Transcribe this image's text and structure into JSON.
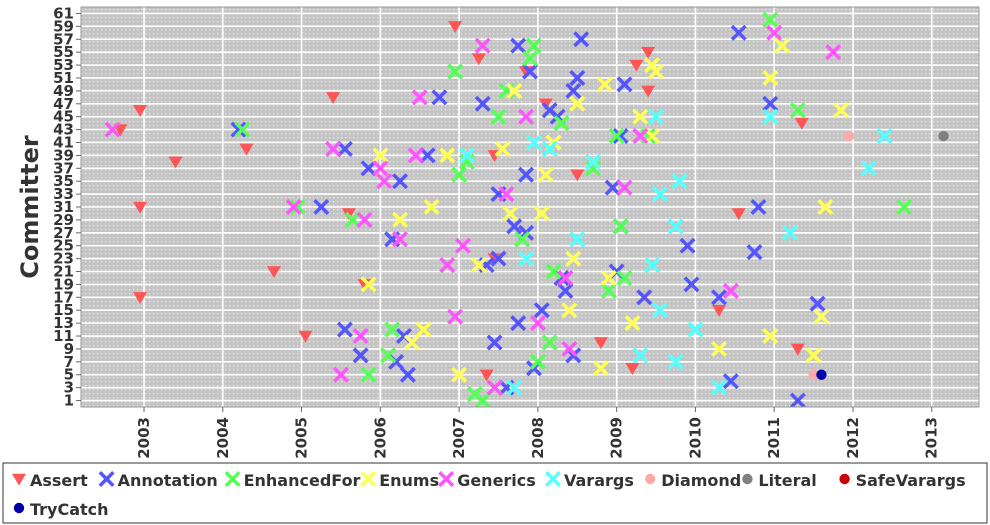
{
  "chart_data": {
    "type": "scatter",
    "title": "",
    "xlabel": "",
    "ylabel": "Committer",
    "xlim": [
      2002.2,
      2013.6
    ],
    "ylim": [
      0,
      62
    ],
    "grid": true,
    "legend_position": "bottom",
    "x_ticks": [
      "2003",
      "2004",
      "2005",
      "2006",
      "2007",
      "2008",
      "2009",
      "2010",
      "2011",
      "2012",
      "2013"
    ],
    "y_ticks": [
      "1",
      "3",
      "5",
      "7",
      "9",
      "11",
      "13",
      "15",
      "17",
      "19",
      "21",
      "23",
      "25",
      "27",
      "29",
      "31",
      "33",
      "35",
      "37",
      "39",
      "41",
      "43",
      "45",
      "47",
      "49",
      "51",
      "53",
      "55",
      "57",
      "59",
      "61"
    ],
    "series": [
      {
        "name": "Assert",
        "marker": "triangle",
        "color": "#ff5555",
        "points": [
          [
            2002.7,
            43
          ],
          [
            2002.95,
            46
          ],
          [
            2002.95,
            17
          ],
          [
            2002.95,
            31
          ],
          [
            2003.4,
            38
          ],
          [
            2004.3,
            40
          ],
          [
            2004.65,
            21
          ],
          [
            2005.05,
            11
          ],
          [
            2005.4,
            48
          ],
          [
            2005.6,
            30
          ],
          [
            2005.8,
            19
          ],
          [
            2006.95,
            59
          ],
          [
            2007.25,
            54
          ],
          [
            2007.35,
            5
          ],
          [
            2007.45,
            23
          ],
          [
            2007.45,
            39
          ],
          [
            2007.85,
            52
          ],
          [
            2008.1,
            47
          ],
          [
            2008.5,
            36
          ],
          [
            2008.8,
            10
          ],
          [
            2009.2,
            6
          ],
          [
            2009.25,
            53
          ],
          [
            2009.4,
            55
          ],
          [
            2009.4,
            49
          ],
          [
            2010.3,
            15
          ],
          [
            2010.55,
            30
          ],
          [
            2011.3,
            9
          ],
          [
            2011.35,
            44
          ]
        ]
      },
      {
        "name": "Annotation",
        "marker": "x",
        "color": "#5555ff",
        "points": [
          [
            2004.2,
            43
          ],
          [
            2005.25,
            31
          ],
          [
            2005.55,
            40
          ],
          [
            2005.55,
            12
          ],
          [
            2005.75,
            8
          ],
          [
            2005.85,
            37
          ],
          [
            2006.15,
            26
          ],
          [
            2006.2,
            7
          ],
          [
            2006.25,
            35
          ],
          [
            2006.3,
            11
          ],
          [
            2006.35,
            5
          ],
          [
            2006.6,
            39
          ],
          [
            2006.75,
            48
          ],
          [
            2007.3,
            47
          ],
          [
            2007.35,
            22
          ],
          [
            2007.45,
            10
          ],
          [
            2007.5,
            33
          ],
          [
            2007.5,
            23
          ],
          [
            2007.6,
            3
          ],
          [
            2007.7,
            28
          ],
          [
            2007.75,
            13
          ],
          [
            2007.75,
            56
          ],
          [
            2007.85,
            27
          ],
          [
            2007.85,
            36
          ],
          [
            2007.9,
            52
          ],
          [
            2007.95,
            6
          ],
          [
            2008.05,
            15
          ],
          [
            2008.15,
            46
          ],
          [
            2008.25,
            45
          ],
          [
            2008.3,
            20
          ],
          [
            2008.35,
            18
          ],
          [
            2008.45,
            8
          ],
          [
            2008.45,
            49
          ],
          [
            2008.5,
            51
          ],
          [
            2008.55,
            57
          ],
          [
            2008.95,
            34
          ],
          [
            2009.0,
            21
          ],
          [
            2009.05,
            28
          ],
          [
            2009.05,
            42
          ],
          [
            2009.1,
            50
          ],
          [
            2009.35,
            17
          ],
          [
            2009.9,
            25
          ],
          [
            2009.95,
            19
          ],
          [
            2010.3,
            17
          ],
          [
            2010.45,
            4
          ],
          [
            2010.55,
            58
          ],
          [
            2010.75,
            24
          ],
          [
            2010.8,
            31
          ],
          [
            2010.95,
            47
          ],
          [
            2011.3,
            1
          ],
          [
            2011.55,
            16
          ]
        ]
      },
      {
        "name": "EnhancedFor",
        "marker": "x",
        "color": "#55ff55",
        "points": [
          [
            2004.25,
            43
          ],
          [
            2004.95,
            31
          ],
          [
            2005.65,
            29
          ],
          [
            2005.85,
            5
          ],
          [
            2006.1,
            8
          ],
          [
            2006.15,
            12
          ],
          [
            2006.85,
            22
          ],
          [
            2006.95,
            52
          ],
          [
            2007.0,
            36
          ],
          [
            2007.1,
            38
          ],
          [
            2007.2,
            2
          ],
          [
            2007.3,
            1
          ],
          [
            2007.5,
            45
          ],
          [
            2007.6,
            49
          ],
          [
            2007.8,
            26
          ],
          [
            2007.9,
            54
          ],
          [
            2007.95,
            56
          ],
          [
            2008.0,
            7
          ],
          [
            2008.15,
            10
          ],
          [
            2008.2,
            21
          ],
          [
            2008.3,
            44
          ],
          [
            2008.7,
            37
          ],
          [
            2008.9,
            18
          ],
          [
            2009.0,
            42
          ],
          [
            2009.05,
            28
          ],
          [
            2009.1,
            20
          ],
          [
            2009.4,
            42
          ],
          [
            2010.95,
            60
          ],
          [
            2011.3,
            46
          ],
          [
            2012.65,
            31
          ]
        ]
      },
      {
        "name": "Enums",
        "marker": "x",
        "color": "#ffff55",
        "points": [
          [
            2005.85,
            19
          ],
          [
            2006.0,
            39
          ],
          [
            2006.25,
            29
          ],
          [
            2006.4,
            10
          ],
          [
            2006.55,
            12
          ],
          [
            2006.65,
            31
          ],
          [
            2006.85,
            39
          ],
          [
            2007.0,
            5
          ],
          [
            2007.25,
            22
          ],
          [
            2007.45,
            3
          ],
          [
            2007.55,
            40
          ],
          [
            2007.65,
            30
          ],
          [
            2007.7,
            49
          ],
          [
            2008.05,
            30
          ],
          [
            2008.1,
            36
          ],
          [
            2008.2,
            41
          ],
          [
            2008.4,
            15
          ],
          [
            2008.45,
            23
          ],
          [
            2008.5,
            47
          ],
          [
            2008.8,
            6
          ],
          [
            2008.85,
            50
          ],
          [
            2008.9,
            20
          ],
          [
            2009.2,
            13
          ],
          [
            2009.3,
            45
          ],
          [
            2009.45,
            42
          ],
          [
            2009.45,
            53
          ],
          [
            2009.5,
            52
          ],
          [
            2010.3,
            9
          ],
          [
            2010.95,
            51
          ],
          [
            2010.95,
            11
          ],
          [
            2011.1,
            56
          ],
          [
            2011.5,
            8
          ],
          [
            2011.6,
            14
          ],
          [
            2011.65,
            31
          ],
          [
            2011.85,
            46
          ]
        ]
      },
      {
        "name": "Generics",
        "marker": "x",
        "color": "#ff55ff",
        "points": [
          [
            2002.6,
            43
          ],
          [
            2004.9,
            31
          ],
          [
            2005.4,
            40
          ],
          [
            2005.5,
            5
          ],
          [
            2005.75,
            11
          ],
          [
            2005.8,
            29
          ],
          [
            2006.0,
            37
          ],
          [
            2006.05,
            35
          ],
          [
            2006.25,
            26
          ],
          [
            2006.45,
            39
          ],
          [
            2006.5,
            48
          ],
          [
            2006.85,
            22
          ],
          [
            2006.95,
            14
          ],
          [
            2007.05,
            25
          ],
          [
            2007.3,
            56
          ],
          [
            2007.45,
            3
          ],
          [
            2007.6,
            33
          ],
          [
            2007.85,
            45
          ],
          [
            2008.0,
            13
          ],
          [
            2008.35,
            20
          ],
          [
            2008.4,
            9
          ],
          [
            2009.1,
            34
          ],
          [
            2009.3,
            42
          ],
          [
            2010.45,
            18
          ],
          [
            2011.0,
            58
          ],
          [
            2011.75,
            55
          ]
        ]
      },
      {
        "name": "Varargs",
        "marker": "x",
        "color": "#55ffff",
        "points": [
          [
            2007.1,
            39
          ],
          [
            2007.7,
            3
          ],
          [
            2007.85,
            23
          ],
          [
            2007.95,
            41
          ],
          [
            2008.15,
            40
          ],
          [
            2008.5,
            26
          ],
          [
            2008.7,
            38
          ],
          [
            2009.3,
            8
          ],
          [
            2009.45,
            22
          ],
          [
            2009.5,
            45
          ],
          [
            2009.55,
            33
          ],
          [
            2009.55,
            15
          ],
          [
            2009.75,
            28
          ],
          [
            2009.75,
            7
          ],
          [
            2009.8,
            35
          ],
          [
            2010.0,
            12
          ],
          [
            2010.3,
            3
          ],
          [
            2010.95,
            45
          ],
          [
            2011.2,
            27
          ],
          [
            2012.2,
            37
          ],
          [
            2012.4,
            42
          ]
        ]
      },
      {
        "name": "Diamond",
        "marker": "circle",
        "color": "#ffaaaa",
        "points": [
          [
            2011.5,
            5
          ],
          [
            2011.95,
            42
          ]
        ]
      },
      {
        "name": "Literal",
        "marker": "circle",
        "color": "#808080",
        "points": [
          [
            2013.15,
            42
          ]
        ]
      },
      {
        "name": "SafeVarargs",
        "marker": "circle",
        "color": "#cc0000",
        "points": []
      },
      {
        "name": "TryCatch",
        "marker": "circle",
        "color": "#0000aa",
        "points": [
          [
            2011.6,
            5
          ]
        ]
      }
    ]
  }
}
